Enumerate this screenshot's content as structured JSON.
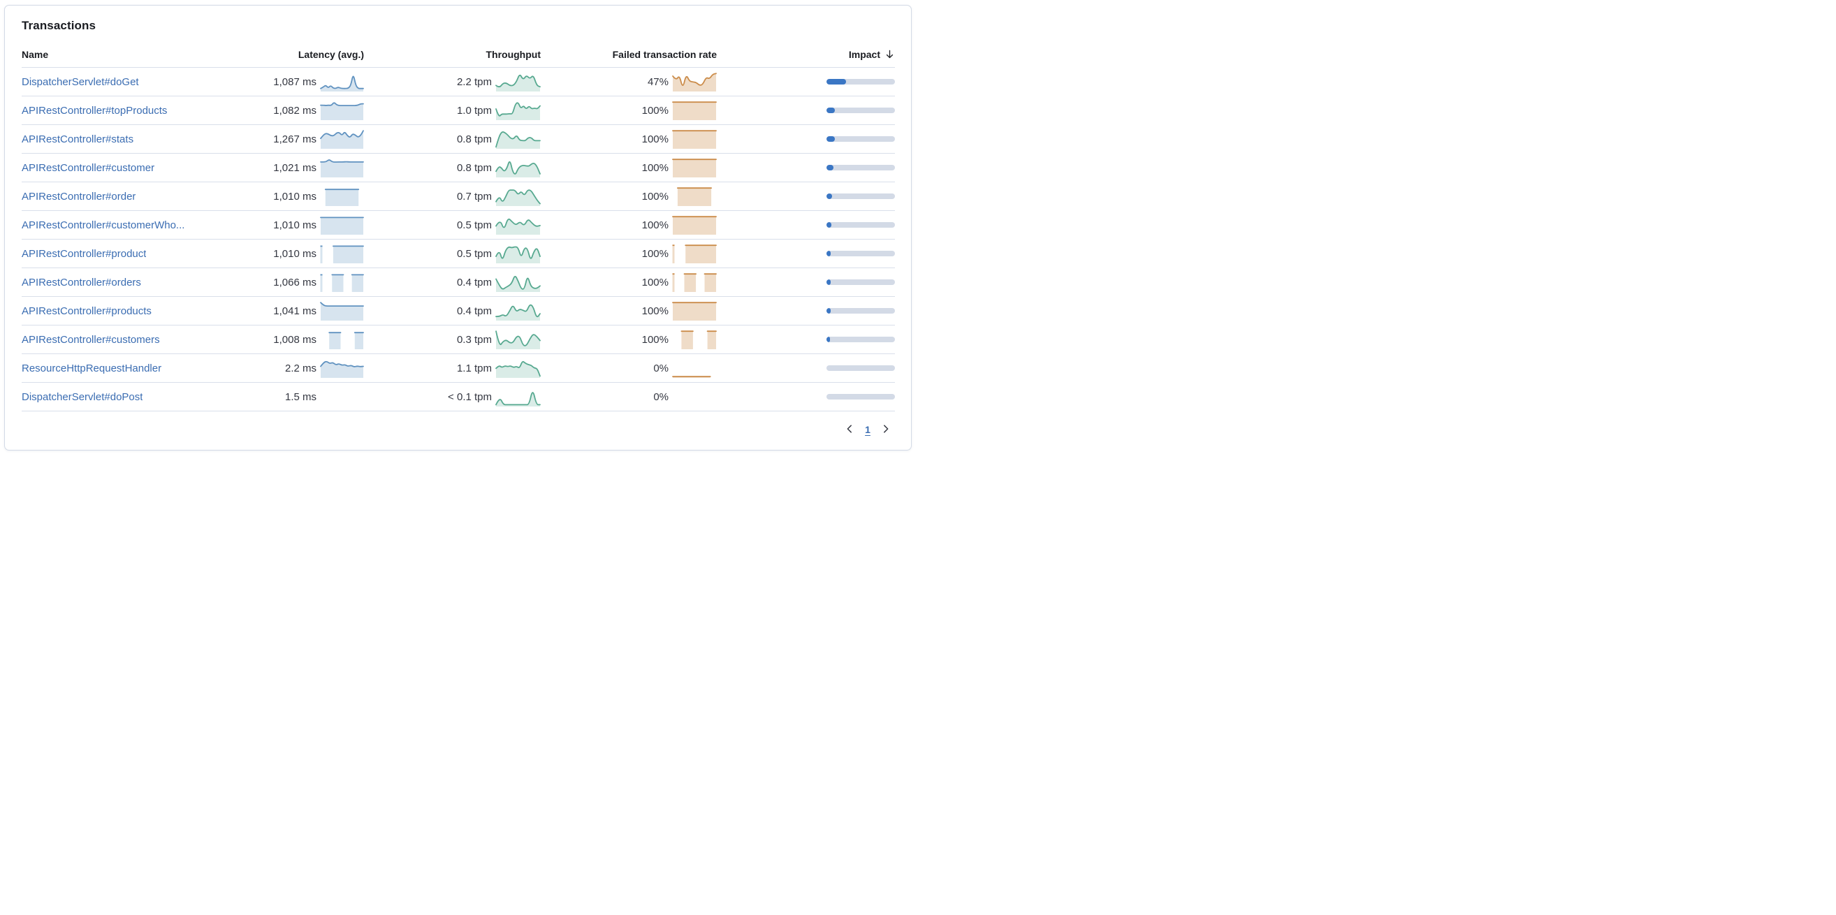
{
  "panel": {
    "title": "Transactions"
  },
  "colors": {
    "link": "#3b6db2",
    "text": "#343741",
    "heading": "#1a1c21",
    "divider": "#d9dfea",
    "card_border": "#d3dae6",
    "latency_spark_line": "#6092c0",
    "throughput_spark_line": "#57a990",
    "failed_spark_line": "#cb8c4a",
    "impact_fill": "#3a76c4",
    "impact_track": "#d3dae6"
  },
  "table": {
    "columns": [
      {
        "label": "Name"
      },
      {
        "label": "Latency (avg.)"
      },
      {
        "label": "Throughput"
      },
      {
        "label": "Failed transaction rate"
      },
      {
        "label": "Impact",
        "sorted": "desc"
      }
    ],
    "rows": [
      {
        "name": "DispatcherServlet#doGet",
        "latency": "1,087 ms",
        "latency_spark": [
          0.12,
          0.2,
          0.32,
          0.15,
          0.3,
          0.14,
          0.12,
          0.2,
          0.13,
          0.12,
          0.12,
          0.13,
          0.3,
          1.0,
          0.3,
          0.12,
          0.12,
          0.12
        ],
        "throughput": "2.2 tpm",
        "throughput_spark": [
          0.3,
          0.15,
          0.42,
          0.45,
          0.3,
          0.28,
          0.5,
          1.0,
          0.62,
          0.9,
          0.68,
          0.92,
          0.3,
          0.22
        ],
        "failed_rate": "47%",
        "failed_spark": [
          0.85,
          0.6,
          0.9,
          0.1,
          0.95,
          0.55,
          0.5,
          0.48,
          0.3,
          0.35,
          0.78,
          0.68,
          0.95,
          1.0
        ],
        "impact": 0.29
      },
      {
        "name": "APIRestController#topProducts",
        "latency": "1,082 ms",
        "latency_spark": [
          0.82,
          0.82,
          0.8,
          0.82,
          0.8,
          1.0,
          0.84,
          0.8,
          0.8,
          0.8,
          0.8,
          0.8,
          0.8,
          0.8,
          0.82,
          0.9,
          0.9
        ],
        "throughput": "1.0 tpm",
        "throughput_spark": [
          0.6,
          0.12,
          0.3,
          0.3,
          0.3,
          0.32,
          0.3,
          0.88,
          1.0,
          0.62,
          0.8,
          0.58,
          0.78,
          0.6,
          0.65,
          0.6,
          0.78
        ],
        "failed_rate": "100%",
        "failed_spark": [
          1,
          1,
          1,
          1,
          1,
          1,
          1,
          1,
          1,
          1,
          1,
          1,
          1,
          1,
          1,
          1
        ],
        "impact": 0.125
      },
      {
        "name": "APIRestController#stats",
        "latency": "1,267 ms",
        "latency_spark": [
          0.55,
          0.75,
          0.85,
          0.8,
          0.7,
          0.72,
          0.88,
          0.9,
          0.72,
          0.95,
          0.72,
          0.6,
          0.82,
          0.75,
          0.62,
          0.72,
          1.0
        ],
        "throughput": "0.8 tpm",
        "throughput_spark": [
          0.05,
          0.65,
          0.95,
          0.9,
          0.75,
          0.55,
          0.52,
          0.75,
          0.45,
          0.42,
          0.42,
          0.6,
          0.6,
          0.42,
          0.42,
          0.42
        ],
        "failed_rate": "100%",
        "failed_spark": [
          1,
          1,
          1,
          1,
          1,
          1,
          1,
          1,
          1,
          1,
          1,
          1,
          1,
          1,
          1,
          1
        ],
        "impact": 0.12
      },
      {
        "name": "APIRestController#customer",
        "latency": "1,021 ms",
        "latency_spark": [
          0.85,
          0.85,
          0.87,
          1.0,
          0.86,
          0.84,
          0.85,
          0.85,
          0.85,
          0.86,
          0.85,
          0.85,
          0.85,
          0.85,
          0.85,
          0.85
        ],
        "throughput": "0.8 tpm",
        "throughput_spark": [
          0.3,
          0.6,
          0.5,
          0.28,
          0.5,
          1.0,
          0.3,
          0.08,
          0.45,
          0.62,
          0.65,
          0.62,
          0.6,
          0.75,
          0.78,
          0.55,
          0.15
        ],
        "failed_rate": "100%",
        "failed_spark": [
          1,
          1,
          1,
          1,
          1,
          1,
          1,
          1,
          1,
          1,
          1,
          1,
          1,
          1,
          1,
          1
        ],
        "impact": 0.105
      },
      {
        "name": "APIRestController#order",
        "latency": "1,010 ms",
        "latency_spark": [
          null,
          null,
          0.92,
          0.92,
          0.92,
          0.92,
          0.92,
          0.92,
          0.92,
          0.92,
          0.92,
          0.92,
          0.92,
          0.92,
          0.92,
          0.92,
          0.92,
          null,
          null
        ],
        "throughput": "0.7 tpm",
        "throughput_spark": [
          0.2,
          0.55,
          0.15,
          0.45,
          0.88,
          0.88,
          0.88,
          0.6,
          0.82,
          0.55,
          0.88,
          0.88,
          0.6,
          0.3,
          0.08
        ],
        "failed_rate": "100%",
        "failed_spark": [
          null,
          null,
          1,
          1,
          1,
          1,
          1,
          1,
          1,
          1,
          1,
          1,
          1,
          1,
          1,
          1,
          1,
          null,
          null
        ],
        "impact": 0.085
      },
      {
        "name": "APIRestController#customerWho...",
        "latency": "1,010 ms",
        "latency_spark": [
          0.95,
          0.95,
          0.95,
          0.95,
          0.95,
          0.95,
          0.95,
          0.95,
          0.95,
          0.95,
          0.95,
          0.95,
          0.95,
          0.95,
          0.95,
          0.95,
          0.95
        ],
        "throughput": "0.5 tpm",
        "throughput_spark": [
          0.45,
          0.85,
          0.2,
          0.95,
          0.7,
          0.5,
          0.72,
          0.45,
          0.88,
          0.62,
          0.42,
          0.48
        ],
        "failed_rate": "100%",
        "failed_spark": [
          1,
          1,
          1,
          1,
          1,
          1,
          1,
          1,
          1,
          1,
          1,
          1,
          1,
          1,
          1,
          1
        ],
        "impact": 0.07
      },
      {
        "name": "APIRestController#product",
        "latency": "1,010 ms",
        "latency_spark": [
          0.95,
          null,
          null,
          null,
          null,
          0.95,
          0.95,
          0.95,
          0.95,
          0.95,
          0.95,
          0.95,
          0.95,
          0.95,
          0.95,
          0.95,
          0.95,
          0.95
        ],
        "throughput": "0.5 tpm",
        "throughput_spark": [
          0.35,
          0.75,
          0.08,
          0.7,
          0.92,
          0.85,
          0.92,
          0.88,
          0.25,
          0.85,
          0.82,
          0.08,
          0.62,
          0.88,
          0.35
        ],
        "failed_rate": "100%",
        "failed_spark": [
          1,
          null,
          null,
          null,
          null,
          1,
          1,
          1,
          1,
          1,
          1,
          1,
          1,
          1,
          1,
          1,
          1,
          1
        ],
        "impact": 0.062
      },
      {
        "name": "APIRestController#orders",
        "latency": "1,066 ms",
        "latency_spark": [
          0.95,
          null,
          null,
          null,
          0.95,
          0.95,
          0.95,
          0.95,
          0.95,
          null,
          null,
          0.95,
          0.95,
          0.95,
          0.95,
          0.95
        ],
        "throughput": "0.4 tpm",
        "throughput_spark": [
          0.7,
          0.35,
          0.08,
          0.2,
          0.3,
          0.45,
          0.95,
          0.6,
          0.12,
          0.1,
          0.92,
          0.3,
          0.15,
          0.15,
          0.3
        ],
        "failed_rate": "100%",
        "failed_spark": [
          1,
          null,
          null,
          null,
          1,
          1,
          1,
          1,
          1,
          null,
          null,
          1,
          1,
          1,
          1,
          1
        ],
        "impact": 0.06
      },
      {
        "name": "APIRestController#products",
        "latency": "1,041 ms",
        "latency_spark": [
          1.0,
          0.84,
          0.8,
          0.8,
          0.8,
          0.8,
          0.8,
          0.8,
          0.8,
          0.8,
          0.8,
          0.8,
          0.8,
          0.8,
          0.8,
          0.8
        ],
        "throughput": "0.4 tpm",
        "throughput_spark": [
          0.18,
          0.18,
          0.3,
          0.18,
          0.5,
          0.88,
          0.45,
          0.62,
          0.55,
          0.45,
          0.92,
          0.75,
          0.08,
          0.35
        ],
        "failed_rate": "100%",
        "failed_spark": [
          1,
          1,
          1,
          1,
          1,
          1,
          1,
          1,
          1,
          1,
          1,
          1,
          1,
          1,
          1,
          1
        ],
        "impact": 0.058
      },
      {
        "name": "APIRestController#customers",
        "latency": "1,008 ms",
        "latency_spark": [
          null,
          null,
          null,
          0.92,
          0.92,
          0.92,
          0.92,
          0.92,
          null,
          null,
          null,
          null,
          0.92,
          0.92,
          0.92,
          0.92
        ],
        "throughput": "0.3 tpm",
        "throughput_spark": [
          1.0,
          0.1,
          0.38,
          0.5,
          0.32,
          0.32,
          0.68,
          0.72,
          0.15,
          0.15,
          0.55,
          0.85,
          0.7,
          0.45
        ],
        "failed_rate": "100%",
        "failed_spark": [
          null,
          null,
          null,
          1,
          1,
          1,
          1,
          1,
          null,
          null,
          null,
          null,
          1,
          1,
          1,
          1
        ],
        "impact": 0.055
      },
      {
        "name": "ResourceHttpRequestHandler",
        "latency": "2.2 ms",
        "latency_spark": [
          0.62,
          0.85,
          0.92,
          0.78,
          0.85,
          0.7,
          0.78,
          0.68,
          0.72,
          0.62,
          0.68,
          0.58,
          0.64,
          0.6,
          0.62
        ],
        "throughput": "1.1 tpm",
        "throughput_spark": [
          0.5,
          0.68,
          0.55,
          0.65,
          0.6,
          0.65,
          0.55,
          0.62,
          0.5,
          0.95,
          0.8,
          0.72,
          0.68,
          0.52,
          0.5,
          0.05
        ],
        "failed_rate": "0%",
        "failed_spark": [
          0.02,
          0.02,
          0.02,
          0.02,
          0.02,
          0.02,
          0.02,
          0.02,
          0.02,
          0.02,
          0.02,
          0.02,
          0.02,
          0.02,
          null,
          null
        ],
        "impact": 0
      },
      {
        "name": "DispatcherServlet#doPost",
        "latency": "1.5 ms",
        "latency_spark": [],
        "throughput": "< 0.1 tpm",
        "throughput_spark": [
          0.05,
          0.5,
          0.05,
          0.05,
          0.05,
          0.05,
          0.05,
          0.05,
          0.05,
          0.05,
          1.0,
          0.05,
          0.05
        ],
        "failed_rate": "0%",
        "failed_spark": [],
        "impact": 0
      }
    ]
  },
  "pagination": {
    "current_page": "1"
  }
}
